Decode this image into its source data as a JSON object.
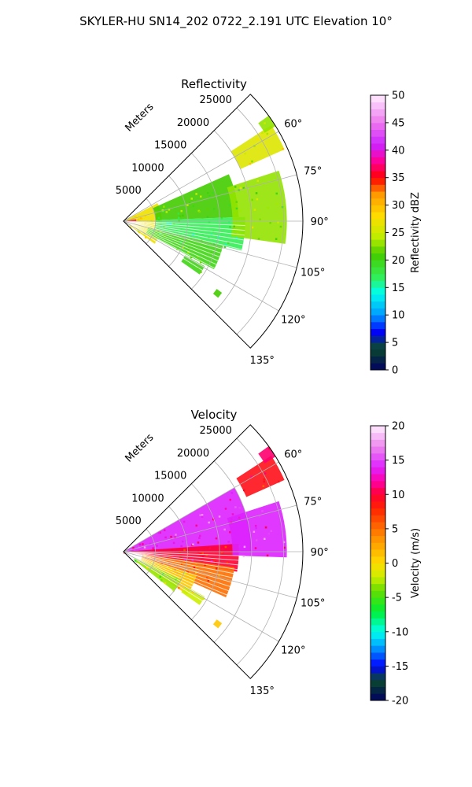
{
  "figure": {
    "suptitle": "SKYLER-HU  SN14_202  0722_2.191 UTC Elevation 10°"
  },
  "chart_data": [
    {
      "type": "polar-sector",
      "title": "Reflectivity",
      "radial_label": "Meters",
      "radial_ticks": [
        "5000",
        "10000",
        "15000",
        "20000",
        "25000"
      ],
      "angle_ticks": [
        "60°",
        "75°",
        "90°",
        "105°",
        "120°",
        "135°"
      ],
      "theta_range_deg": [
        45,
        135
      ],
      "r_max_m": 28000,
      "colorbar": {
        "label": "Reflectivity dBZ",
        "ticks": [
          "0",
          "5",
          "10",
          "15",
          "20",
          "25",
          "30",
          "35",
          "40",
          "45",
          "50"
        ],
        "range": [
          0,
          50
        ],
        "stops": [
          {
            "v": 0,
            "c": "#000060"
          },
          {
            "v": 4,
            "c": "#0a4a2a"
          },
          {
            "v": 7,
            "c": "#0000ff"
          },
          {
            "v": 10,
            "c": "#0099ff"
          },
          {
            "v": 14,
            "c": "#00ffee"
          },
          {
            "v": 17,
            "c": "#33ee55"
          },
          {
            "v": 21,
            "c": "#44cc00"
          },
          {
            "v": 24,
            "c": "#bbee00"
          },
          {
            "v": 28,
            "c": "#ffdd00"
          },
          {
            "v": 32,
            "c": "#ff9900"
          },
          {
            "v": 35,
            "c": "#ff0000"
          },
          {
            "v": 38,
            "c": "#ff0099"
          },
          {
            "v": 41,
            "c": "#cc22ff"
          },
          {
            "v": 45,
            "c": "#ee77ee"
          },
          {
            "v": 50,
            "c": "#ffeeff"
          }
        ]
      },
      "echo_regions": [
        {
          "t1": 62,
          "t2": 126,
          "r1": 0,
          "r2": 6000,
          "value": 27
        },
        {
          "t1": 82,
          "t2": 96,
          "r1": 500,
          "r2": 2000,
          "value": 36
        },
        {
          "t1": 66,
          "t2": 88,
          "r1": 5000,
          "r2": 18000,
          "value": 21
        },
        {
          "t1": 88,
          "t2": 104,
          "r1": 5000,
          "r2": 19000,
          "value": 17
        },
        {
          "t1": 104,
          "t2": 118,
          "r1": 4000,
          "r2": 16000,
          "value": 20
        },
        {
          "t1": 72,
          "t2": 98,
          "r1": 17000,
          "r2": 25500,
          "value": 23
        },
        {
          "t1": 57,
          "t2": 66,
          "r1": 20000,
          "r2": 27500,
          "value": 26
        },
        {
          "t1": 54,
          "t2": 58,
          "r1": 26000,
          "r2": 28000,
          "value": 23
        },
        {
          "t1": 119,
          "t2": 125,
          "r1": 11000,
          "r2": 14500,
          "value": 20
        },
        {
          "t1": 126,
          "t2": 129,
          "r1": 18000,
          "r2": 19000,
          "value": 21
        }
      ]
    },
    {
      "type": "polar-sector",
      "title": "Velocity",
      "radial_label": "Meters",
      "radial_ticks": [
        "5000",
        "10000",
        "15000",
        "20000",
        "25000"
      ],
      "angle_ticks": [
        "60°",
        "75°",
        "90°",
        "105°",
        "120°",
        "135°"
      ],
      "theta_range_deg": [
        45,
        135
      ],
      "r_max_m": 28000,
      "colorbar": {
        "label": "Velocity (m/s)",
        "ticks": [
          "-20",
          "-15",
          "-10",
          "-5",
          "0",
          "5",
          "10",
          "15",
          "20"
        ],
        "range": [
          -20,
          20
        ],
        "stops": [
          {
            "v": -20,
            "c": "#000060"
          },
          {
            "v": -17,
            "c": "#0a4a2a"
          },
          {
            "v": -15,
            "c": "#0000ff"
          },
          {
            "v": -12,
            "c": "#00aaff"
          },
          {
            "v": -10,
            "c": "#00ffee"
          },
          {
            "v": -7,
            "c": "#00ee33"
          },
          {
            "v": -4,
            "c": "#66dd00"
          },
          {
            "v": -2,
            "c": "#ccee00"
          },
          {
            "v": 0,
            "c": "#ffdd00"
          },
          {
            "v": 4,
            "c": "#ff8800"
          },
          {
            "v": 8,
            "c": "#ff2200"
          },
          {
            "v": 10,
            "c": "#ff0033"
          },
          {
            "v": 12,
            "c": "#ff00aa"
          },
          {
            "v": 14,
            "c": "#dd22ff"
          },
          {
            "v": 17,
            "c": "#ee88ee"
          },
          {
            "v": 20,
            "c": "#ffeeff"
          }
        ]
      },
      "echo_regions": [
        {
          "t1": 60,
          "t2": 90,
          "r1": 0,
          "r2": 20000,
          "value": 14
        },
        {
          "t1": 86,
          "t2": 100,
          "r1": 0,
          "r2": 18000,
          "value": 10
        },
        {
          "t1": 98,
          "t2": 114,
          "r1": 3000,
          "r2": 17500,
          "value": 5
        },
        {
          "t1": 108,
          "t2": 124,
          "r1": 3000,
          "r2": 12000,
          "value": 1
        },
        {
          "t1": 116,
          "t2": 128,
          "r1": 2000,
          "r2": 10000,
          "value": -3
        },
        {
          "t1": 72,
          "t2": 92,
          "r1": 17000,
          "r2": 25500,
          "value": 14
        },
        {
          "t1": 57,
          "t2": 66,
          "r1": 21000,
          "r2": 27500,
          "value": 9
        },
        {
          "t1": 54,
          "t2": 58,
          "r1": 26000,
          "r2": 28000,
          "value": 11
        },
        {
          "t1": 119,
          "t2": 125,
          "r1": 11000,
          "r2": 14500,
          "value": -2
        },
        {
          "t1": 126,
          "t2": 129,
          "r1": 18000,
          "r2": 19000,
          "value": 1
        }
      ]
    }
  ]
}
